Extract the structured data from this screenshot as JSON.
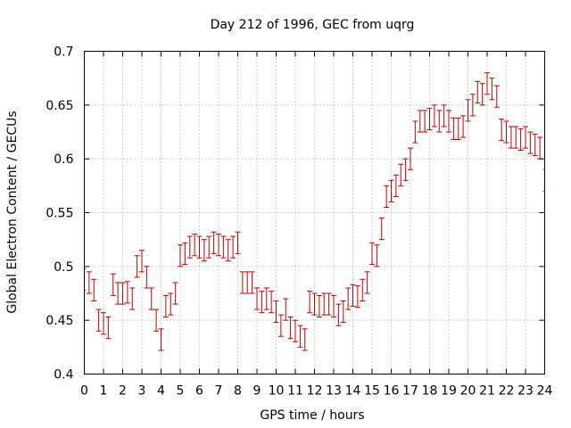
{
  "chart_data": {
    "type": "scatter",
    "title": "Day 212 of 1996, GEC from uqrg",
    "xlabel": "GPS time / hours",
    "ylabel": "Global Electron Content / GECUs",
    "xlim": [
      0,
      24
    ],
    "ylim": [
      0.4,
      0.7
    ],
    "x_ticks": [
      "0",
      "1",
      "2",
      "3",
      "4",
      "5",
      "6",
      "7",
      "8",
      "9",
      "10",
      "11",
      "12",
      "13",
      "14",
      "15",
      "16",
      "17",
      "18",
      "19",
      "20",
      "21",
      "22",
      "23",
      "24"
    ],
    "y_ticks": [
      "0.4",
      "0.45",
      "0.5",
      "0.55",
      "0.6",
      "0.65",
      "0.7"
    ],
    "grid": true,
    "error_bar": 0.01,
    "color": "#c00000",
    "series": [
      {
        "x": [
          0.0,
          0.25,
          0.5,
          0.75,
          1.0,
          1.25,
          1.5,
          1.75,
          2.0,
          2.25,
          2.5,
          2.75,
          3.0,
          3.25,
          3.5,
          3.75,
          4.0,
          4.25,
          4.5,
          4.75,
          5.0,
          5.25,
          5.5,
          5.75,
          6.0,
          6.25,
          6.5,
          6.75,
          7.0,
          7.25,
          7.5,
          7.75,
          8.0,
          8.25,
          8.5,
          8.75,
          9.0,
          9.25,
          9.5,
          9.75,
          10.0,
          10.25,
          10.5,
          10.75,
          11.0,
          11.25,
          11.5,
          11.75,
          12.0,
          12.25,
          12.5,
          12.75,
          13.0,
          13.25,
          13.5,
          13.75,
          14.0,
          14.25,
          14.5,
          14.75,
          15.0,
          15.25,
          15.5,
          15.75,
          16.0,
          16.25,
          16.5,
          16.75,
          17.0,
          17.25,
          17.5,
          17.75,
          18.0,
          18.25,
          18.5,
          18.75,
          19.0,
          19.25,
          19.5,
          19.75,
          20.0,
          20.25,
          20.5,
          20.75,
          21.0,
          21.25,
          21.5,
          21.75,
          22.0,
          22.25,
          22.5,
          22.75,
          23.0,
          23.25,
          23.5,
          23.75,
          24.0
        ],
        "values": [
          0.488,
          0.485,
          0.478,
          0.45,
          0.447,
          0.443,
          0.483,
          0.475,
          0.475,
          0.476,
          0.47,
          0.5,
          0.505,
          0.49,
          0.47,
          0.45,
          0.432,
          0.463,
          0.465,
          0.475,
          0.51,
          0.512,
          0.518,
          0.52,
          0.518,
          0.515,
          0.518,
          0.522,
          0.52,
          0.518,
          0.515,
          0.518,
          0.522,
          0.485,
          0.485,
          0.485,
          0.47,
          0.467,
          0.47,
          0.467,
          0.458,
          0.445,
          0.46,
          0.443,
          0.44,
          0.435,
          0.432,
          0.467,
          0.465,
          0.463,
          0.465,
          0.465,
          0.463,
          0.455,
          0.458,
          0.47,
          0.473,
          0.472,
          0.478,
          0.485,
          0.512,
          0.51,
          0.535,
          0.565,
          0.57,
          0.575,
          0.585,
          0.59,
          0.6,
          0.625,
          0.635,
          0.635,
          0.637,
          0.64,
          0.635,
          0.64,
          0.635,
          0.628,
          0.628,
          0.63,
          0.645,
          0.65,
          0.662,
          0.66,
          0.67,
          0.665,
          0.658,
          0.627,
          0.625,
          0.62,
          0.62,
          0.618,
          0.62,
          0.615,
          0.613,
          0.61,
          0.58
        ]
      }
    ]
  }
}
